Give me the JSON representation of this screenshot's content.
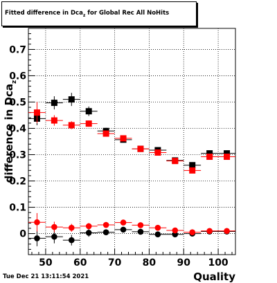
{
  "title": {
    "prefix": "Fitted difference in Dca",
    "subscript": "z",
    "suffix": " for Global Rec All NoHits"
  },
  "footer": {
    "timestamp": "Tue Dec 21 13:11:54 2021"
  },
  "chart_data": {
    "type": "scatter",
    "title": "Fitted difference in Dca_z for Global Rec All NoHits",
    "xlabel": "Quality",
    "ylabel": "difference in Dca",
    "ylabel_subscript": "z",
    "xlim": [
      45,
      105
    ],
    "ylim": [
      -0.08,
      0.78
    ],
    "xticks": [
      50,
      60,
      70,
      80,
      90,
      100
    ],
    "yticks": [
      0,
      0.1,
      0.2,
      0.3,
      0.4,
      0.5,
      0.6,
      0.7
    ],
    "ytick_labels": [
      "0",
      "0.1",
      "0.2",
      "0.3",
      "0.4",
      "0.5",
      "0.6",
      "0.7"
    ],
    "grid": true,
    "x_error": 2.5,
    "series": [
      {
        "marker": "square",
        "color": "#000000",
        "points": [
          {
            "x": 47.5,
            "y": 0.437,
            "err": 0.025
          },
          {
            "x": 52.5,
            "y": 0.497,
            "err": 0.025
          },
          {
            "x": 57.5,
            "y": 0.51,
            "err": 0.025
          },
          {
            "x": 62.5,
            "y": 0.465,
            "err": 0.018
          },
          {
            "x": 67.5,
            "y": 0.39,
            "err": 0.012
          },
          {
            "x": 72.5,
            "y": 0.357,
            "err": 0.01
          },
          {
            "x": 77.5,
            "y": 0.322,
            "err": 0.008
          },
          {
            "x": 82.5,
            "y": 0.317,
            "err": 0.008
          },
          {
            "x": 87.5,
            "y": 0.278,
            "err": 0.008
          },
          {
            "x": 92.5,
            "y": 0.26,
            "err": 0.008
          },
          {
            "x": 97.5,
            "y": 0.305,
            "err": 0.008
          },
          {
            "x": 102.5,
            "y": 0.305,
            "err": 0.008
          }
        ]
      },
      {
        "marker": "square",
        "color": "#ff0000",
        "points": [
          {
            "x": 47.5,
            "y": 0.46,
            "err": 0.04
          },
          {
            "x": 52.5,
            "y": 0.43,
            "err": 0.02
          },
          {
            "x": 57.5,
            "y": 0.412,
            "err": 0.015
          },
          {
            "x": 62.5,
            "y": 0.418,
            "err": 0.012
          },
          {
            "x": 67.5,
            "y": 0.38,
            "err": 0.01
          },
          {
            "x": 72.5,
            "y": 0.362,
            "err": 0.008
          },
          {
            "x": 77.5,
            "y": 0.322,
            "err": 0.007
          },
          {
            "x": 82.5,
            "y": 0.308,
            "err": 0.007
          },
          {
            "x": 87.5,
            "y": 0.276,
            "err": 0.007
          },
          {
            "x": 92.5,
            "y": 0.24,
            "err": 0.008
          },
          {
            "x": 97.5,
            "y": 0.292,
            "err": 0.007
          },
          {
            "x": 102.5,
            "y": 0.292,
            "err": 0.007
          }
        ]
      },
      {
        "marker": "circle",
        "color": "#000000",
        "points": [
          {
            "x": 47.5,
            "y": -0.018,
            "err": 0.03
          },
          {
            "x": 52.5,
            "y": -0.012,
            "err": 0.025
          },
          {
            "x": 57.5,
            "y": -0.025,
            "err": 0.02
          },
          {
            "x": 62.5,
            "y": 0.003,
            "err": 0.015
          },
          {
            "x": 67.5,
            "y": 0.005,
            "err": 0.01
          },
          {
            "x": 72.5,
            "y": 0.015,
            "err": 0.008
          },
          {
            "x": 77.5,
            "y": 0.007,
            "err": 0.007
          },
          {
            "x": 82.5,
            "y": -0.003,
            "err": 0.006
          },
          {
            "x": 87.5,
            "y": -0.003,
            "err": 0.006
          },
          {
            "x": 92.5,
            "y": 0.0,
            "err": 0.006
          },
          {
            "x": 97.5,
            "y": 0.008,
            "err": 0.006
          },
          {
            "x": 102.5,
            "y": 0.008,
            "err": 0.006
          }
        ]
      },
      {
        "marker": "circle",
        "color": "#ff0000",
        "points": [
          {
            "x": 47.5,
            "y": 0.043,
            "err": 0.035
          },
          {
            "x": 52.5,
            "y": 0.025,
            "err": 0.02
          },
          {
            "x": 57.5,
            "y": 0.022,
            "err": 0.015
          },
          {
            "x": 62.5,
            "y": 0.028,
            "err": 0.012
          },
          {
            "x": 67.5,
            "y": 0.033,
            "err": 0.01
          },
          {
            "x": 72.5,
            "y": 0.042,
            "err": 0.008
          },
          {
            "x": 77.5,
            "y": 0.032,
            "err": 0.007
          },
          {
            "x": 82.5,
            "y": 0.022,
            "err": 0.006
          },
          {
            "x": 87.5,
            "y": 0.012,
            "err": 0.006
          },
          {
            "x": 92.5,
            "y": 0.005,
            "err": 0.005
          },
          {
            "x": 97.5,
            "y": 0.01,
            "err": 0.005
          },
          {
            "x": 102.5,
            "y": 0.01,
            "err": 0.005
          }
        ]
      }
    ]
  }
}
